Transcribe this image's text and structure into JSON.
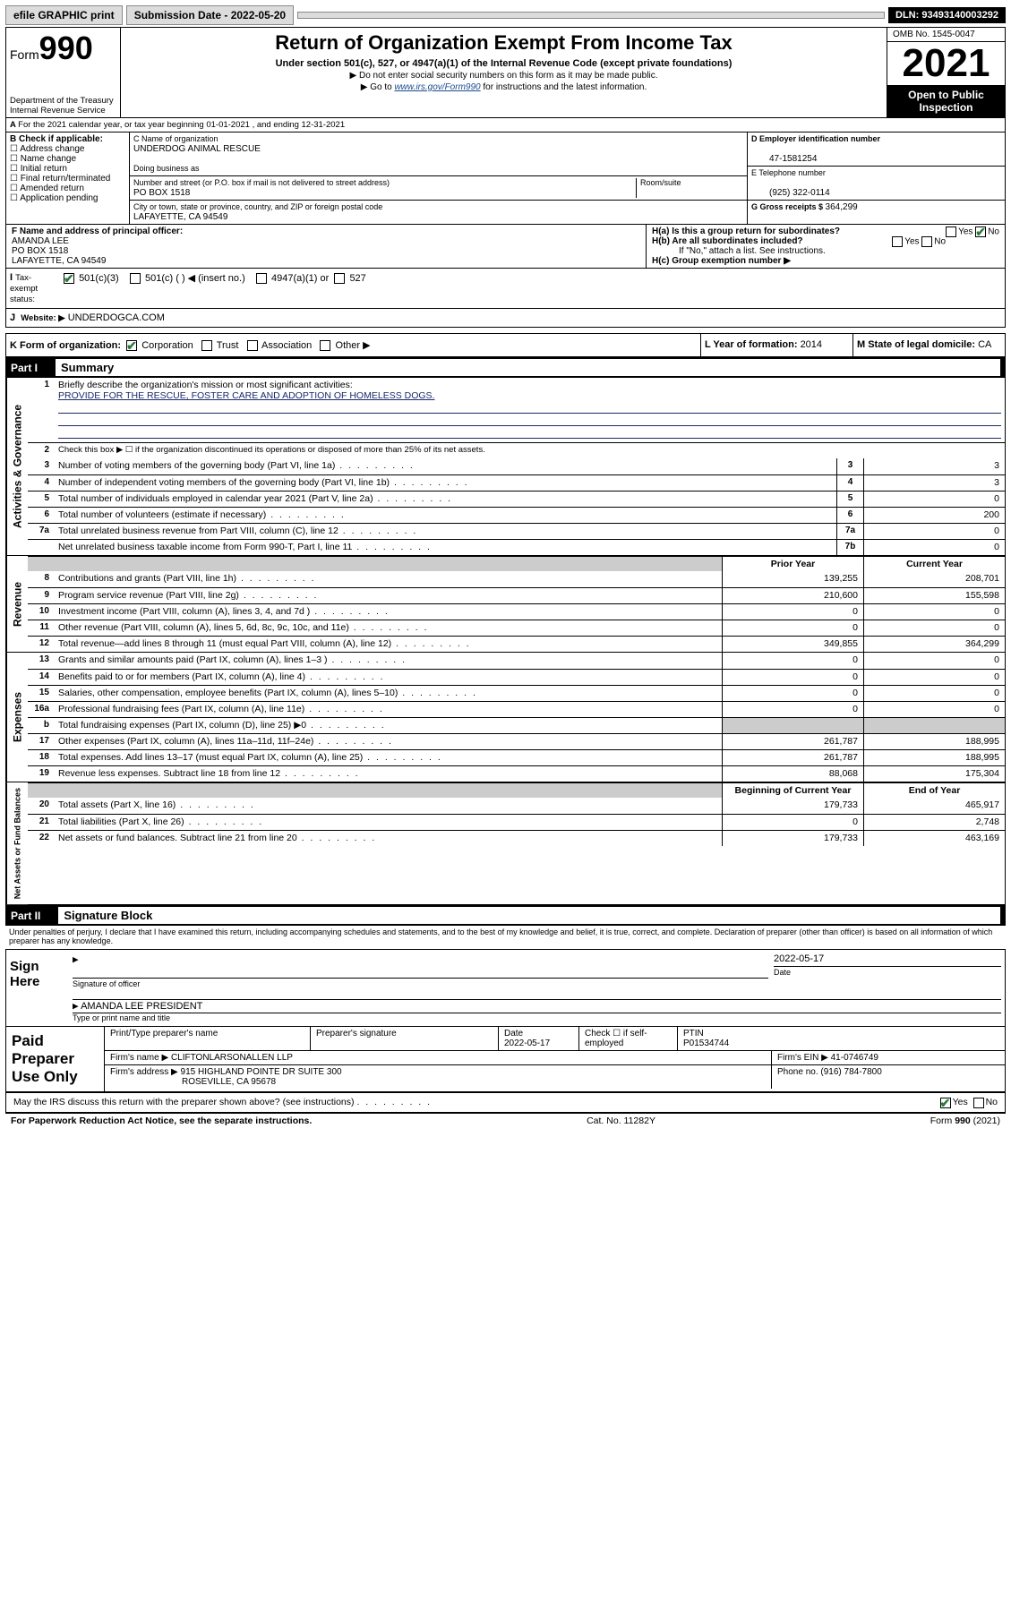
{
  "topbar": {
    "efile": "efile GRAPHIC print",
    "submission_label": "Submission Date - 2022-05-20",
    "dln": "DLN: 93493140003292"
  },
  "header": {
    "form_label": "Form",
    "form_num": "990",
    "dept": "Department of the Treasury",
    "irs": "Internal Revenue Service",
    "title": "Return of Organization Exempt From Income Tax",
    "sub": "Under section 501(c), 527, or 4947(a)(1) of the Internal Revenue Code (except private foundations)",
    "note1": "▶ Do not enter social security numbers on this form as it may be made public.",
    "note2_pre": "▶ Go to ",
    "note2_link": "www.irs.gov/Form990",
    "note2_post": " for instructions and the latest information.",
    "omb": "OMB No. 1545-0047",
    "year": "2021",
    "open": "Open to Public Inspection"
  },
  "lineA": "For the 2021 calendar year, or tax year beginning 01-01-2021   , and ending 12-31-2021",
  "blockB": {
    "label": "B Check if applicable:",
    "opts": [
      "Address change",
      "Name change",
      "Initial return",
      "Final return/terminated",
      "Amended return",
      "Application pending"
    ],
    "c_label": "C Name of organization",
    "c_name": "UNDERDOG ANIMAL RESCUE",
    "dba_label": "Doing business as",
    "addr_label": "Number and street (or P.O. box if mail is not delivered to street address)",
    "room_label": "Room/suite",
    "addr": "PO BOX 1518",
    "city_label": "City or town, state or province, country, and ZIP or foreign postal code",
    "city": "LAFAYETTE, CA  94549",
    "d_label": "D Employer identification number",
    "d_val": "47-1581254",
    "e_label": "E Telephone number",
    "e_val": "(925) 322-0114",
    "g_label": "G Gross receipts $ ",
    "g_val": "364,299"
  },
  "blockF": {
    "f_label": "F  Name and address of principal officer:",
    "name": "AMANDA LEE",
    "addr": "PO BOX 1518",
    "city": "LAFAYETTE, CA  94549",
    "i_label": "Tax-exempt status:",
    "i_501c3": "501(c)(3)",
    "i_501c": "501(c) (   ) ◀ (insert no.)",
    "i_4947": "4947(a)(1) or",
    "i_527": "527",
    "j_label": "Website: ▶",
    "j_val": "UNDERDOGCA.COM",
    "ha_label": "H(a)  Is this a group return for subordinates?",
    "hb_label": "H(b)  Are all subordinates included?",
    "hb_note": "If \"No,\" attach a list. See instructions.",
    "hc_label": "H(c)  Group exemption number ▶",
    "yes": "Yes",
    "no": "No"
  },
  "rowK": {
    "label": "K Form of organization:",
    "corp": "Corporation",
    "trust": "Trust",
    "assoc": "Association",
    "other": "Other ▶",
    "l_label": "L Year of formation: ",
    "l_val": "2014",
    "m_label": "M State of legal domicile: ",
    "m_val": "CA"
  },
  "partI": {
    "head": "Part I",
    "title": "   Summary",
    "l1": "Briefly describe the organization's mission or most significant activities:",
    "mission": "PROVIDE FOR THE RESCUE, FOSTER CARE AND ADOPTION OF HOMELESS DOGS.",
    "l2": "Check this box ▶ ☐  if the organization discontinued its operations or disposed of more than 25% of its net assets.",
    "prior_head": "Prior Year",
    "cur_head": "Current Year",
    "boy_head": "Beginning of Current Year",
    "eoy_head": "End of Year",
    "lines_top": [
      {
        "n": "3",
        "t": "Number of voting members of the governing body (Part VI, line 1a)",
        "box": "3",
        "v": "3"
      },
      {
        "n": "4",
        "t": "Number of independent voting members of the governing body (Part VI, line 1b)",
        "box": "4",
        "v": "3"
      },
      {
        "n": "5",
        "t": "Total number of individuals employed in calendar year 2021 (Part V, line 2a)",
        "box": "5",
        "v": "0"
      },
      {
        "n": "6",
        "t": "Total number of volunteers (estimate if necessary)",
        "box": "6",
        "v": "200"
      },
      {
        "n": "7a",
        "t": "Total unrelated business revenue from Part VIII, column (C), line 12",
        "box": "7a",
        "v": "0"
      },
      {
        "n": "",
        "t": "Net unrelated business taxable income from Form 990-T, Part I, line 11",
        "box": "7b",
        "v": "0"
      }
    ],
    "rev": [
      {
        "n": "8",
        "t": "Contributions and grants (Part VIII, line 1h)",
        "p": "139,255",
        "c": "208,701"
      },
      {
        "n": "9",
        "t": "Program service revenue (Part VIII, line 2g)",
        "p": "210,600",
        "c": "155,598"
      },
      {
        "n": "10",
        "t": "Investment income (Part VIII, column (A), lines 3, 4, and 7d )",
        "p": "0",
        "c": "0"
      },
      {
        "n": "11",
        "t": "Other revenue (Part VIII, column (A), lines 5, 6d, 8c, 9c, 10c, and 11e)",
        "p": "0",
        "c": "0"
      },
      {
        "n": "12",
        "t": "Total revenue—add lines 8 through 11 (must equal Part VIII, column (A), line 12)",
        "p": "349,855",
        "c": "364,299"
      }
    ],
    "exp": [
      {
        "n": "13",
        "t": "Grants and similar amounts paid (Part IX, column (A), lines 1–3 )",
        "p": "0",
        "c": "0"
      },
      {
        "n": "14",
        "t": "Benefits paid to or for members (Part IX, column (A), line 4)",
        "p": "0",
        "c": "0"
      },
      {
        "n": "15",
        "t": "Salaries, other compensation, employee benefits (Part IX, column (A), lines 5–10)",
        "p": "0",
        "c": "0"
      },
      {
        "n": "16a",
        "t": "Professional fundraising fees (Part IX, column (A), line 11e)",
        "p": "0",
        "c": "0"
      },
      {
        "n": "b",
        "t": "Total fundraising expenses (Part IX, column (D), line 25) ▶0",
        "p": "shade",
        "c": "shade"
      },
      {
        "n": "17",
        "t": "Other expenses (Part IX, column (A), lines 11a–11d, 11f–24e)",
        "p": "261,787",
        "c": "188,995"
      },
      {
        "n": "18",
        "t": "Total expenses. Add lines 13–17 (must equal Part IX, column (A), line 25)",
        "p": "261,787",
        "c": "188,995"
      },
      {
        "n": "19",
        "t": "Revenue less expenses. Subtract line 18 from line 12",
        "p": "88,068",
        "c": "175,304"
      }
    ],
    "net": [
      {
        "n": "20",
        "t": "Total assets (Part X, line 16)",
        "p": "179,733",
        "c": "465,917"
      },
      {
        "n": "21",
        "t": "Total liabilities (Part X, line 26)",
        "p": "0",
        "c": "2,748"
      },
      {
        "n": "22",
        "t": "Net assets or fund balances. Subtract line 21 from line 20",
        "p": "179,733",
        "c": "463,169"
      }
    ],
    "side_gov": "Activities & Governance",
    "side_rev": "Revenue",
    "side_exp": "Expenses",
    "side_net": "Net Assets or Fund Balances"
  },
  "partII": {
    "head": "Part II",
    "title": "   Signature Block",
    "decl": "Under penalties of perjury, I declare that I have examined this return, including accompanying schedules and statements, and to the best of my knowledge and belief, it is true, correct, and complete. Declaration of preparer (other than officer) is based on all information of which preparer has any knowledge.",
    "sign_here": "Sign Here",
    "sig_officer": "Signature of officer",
    "date": "Date",
    "date_val": "2022-05-17",
    "name_title": "AMANDA LEE PRESIDENT",
    "name_label": "Type or print name and title",
    "paid": "Paid Preparer Use Only",
    "col1": "Print/Type preparer's name",
    "col2": "Preparer's signature",
    "col3": "Date",
    "col3v": "2022-05-17",
    "col4": "Check ☐ if self-employed",
    "col5": "PTIN",
    "col5v": "P01534744",
    "firm_name_l": "Firm's name    ▶",
    "firm_name": "CLIFTONLARSONALLEN LLP",
    "firm_ein_l": "Firm's EIN ▶",
    "firm_ein": "41-0746749",
    "firm_addr_l": "Firm's address ▶",
    "firm_addr": "915 HIGHLAND POINTE DR SUITE 300",
    "firm_city": "ROSEVILLE, CA  95678",
    "phone_l": "Phone no.",
    "phone": "(916) 784-7800",
    "discuss": "May the IRS discuss this return with the preparer shown above? (see instructions)"
  },
  "footer": {
    "left": "For Paperwork Reduction Act Notice, see the separate instructions.",
    "mid": "Cat. No. 11282Y",
    "right": "Form 990 (2021)"
  }
}
